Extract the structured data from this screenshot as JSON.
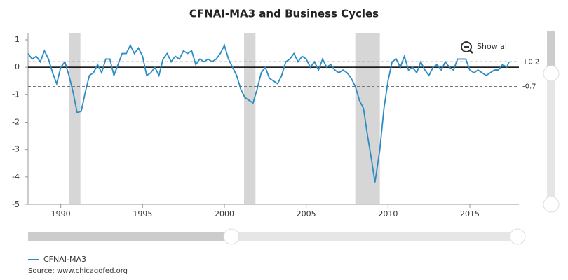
{
  "chart_data": {
    "type": "line",
    "title": "CFNAI-MA3 and Business Cycles",
    "x": [
      1988.0,
      1988.25,
      1988.5,
      1988.75,
      1989.0,
      1989.25,
      1989.5,
      1989.75,
      1990.0,
      1990.25,
      1990.5,
      1990.75,
      1991.0,
      1991.25,
      1991.5,
      1991.75,
      1992.0,
      1992.25,
      1992.5,
      1992.75,
      1993.0,
      1993.25,
      1993.5,
      1993.75,
      1994.0,
      1994.25,
      1994.5,
      1994.75,
      1995.0,
      1995.25,
      1995.5,
      1995.75,
      1996.0,
      1996.25,
      1996.5,
      1996.75,
      1997.0,
      1997.25,
      1997.5,
      1997.75,
      1998.0,
      1998.25,
      1998.5,
      1998.75,
      1999.0,
      1999.25,
      1999.5,
      1999.75,
      2000.0,
      2000.25,
      2000.5,
      2000.75,
      2001.0,
      2001.25,
      2001.5,
      2001.75,
      2002.0,
      2002.25,
      2002.5,
      2002.75,
      2003.0,
      2003.25,
      2003.5,
      2003.75,
      2004.0,
      2004.25,
      2004.5,
      2004.75,
      2005.0,
      2005.25,
      2005.5,
      2005.75,
      2006.0,
      2006.25,
      2006.5,
      2006.75,
      2007.0,
      2007.25,
      2007.5,
      2007.75,
      2008.0,
      2008.25,
      2008.5,
      2008.75,
      2009.0,
      2009.2,
      2009.5,
      2009.75,
      2010.0,
      2010.25,
      2010.5,
      2010.75,
      2011.0,
      2011.25,
      2011.5,
      2011.75,
      2012.0,
      2012.25,
      2012.5,
      2012.75,
      2013.0,
      2013.25,
      2013.5,
      2013.75,
      2014.0,
      2014.25,
      2014.5,
      2014.75,
      2015.0,
      2015.25,
      2015.5,
      2015.75,
      2016.0,
      2016.25,
      2016.5,
      2016.75,
      2017.0,
      2017.25,
      2017.4
    ],
    "series": [
      {
        "name": "CFNAI-MA3",
        "color": "#2b8cc4",
        "values": [
          0.5,
          0.3,
          0.4,
          0.2,
          0.6,
          0.3,
          -0.2,
          -0.6,
          0.0,
          0.2,
          -0.3,
          -0.9,
          -1.65,
          -1.6,
          -0.9,
          -0.3,
          -0.2,
          0.1,
          -0.2,
          0.3,
          0.3,
          -0.3,
          0.1,
          0.5,
          0.5,
          0.8,
          0.5,
          0.7,
          0.4,
          -0.3,
          -0.2,
          0.0,
          -0.3,
          0.3,
          0.5,
          0.2,
          0.4,
          0.3,
          0.6,
          0.5,
          0.6,
          0.1,
          0.3,
          0.2,
          0.3,
          0.2,
          0.3,
          0.5,
          0.8,
          0.3,
          0.0,
          -0.3,
          -0.8,
          -1.1,
          -1.2,
          -1.3,
          -0.8,
          -0.2,
          0.0,
          -0.4,
          -0.5,
          -0.6,
          -0.3,
          0.2,
          0.3,
          0.5,
          0.2,
          0.4,
          0.3,
          0.0,
          0.2,
          -0.1,
          0.3,
          0.0,
          0.1,
          -0.1,
          -0.2,
          -0.1,
          -0.2,
          -0.4,
          -0.7,
          -1.2,
          -1.5,
          -2.5,
          -3.4,
          -4.2,
          -3.0,
          -1.5,
          -0.5,
          0.2,
          0.3,
          0.0,
          0.4,
          -0.1,
          0.0,
          -0.2,
          0.2,
          -0.1,
          -0.3,
          0.0,
          0.1,
          -0.1,
          0.2,
          0.0,
          -0.1,
          0.3,
          0.3,
          0.3,
          -0.1,
          -0.2,
          -0.1,
          -0.2,
          -0.3,
          -0.2,
          -0.1,
          -0.1,
          0.1,
          0.0,
          0.2
        ]
      }
    ],
    "recessions": [
      [
        1990.5,
        1991.2
      ],
      [
        2001.2,
        2001.9
      ],
      [
        2008.0,
        2009.5
      ]
    ],
    "reference_lines": [
      {
        "value": 0.2,
        "label": "+0.2"
      },
      {
        "value": -0.7,
        "label": "-0.7"
      }
    ],
    "xlim": [
      1988,
      2018
    ],
    "xticks": [
      1990,
      1995,
      2000,
      2005,
      2010,
      2015
    ],
    "ylim": [
      -5,
      1
    ],
    "yticks": [
      -5,
      -4,
      -3,
      -2,
      -1,
      0,
      1
    ],
    "show_all": "Show all",
    "source": "Source: www.chicagofed.org"
  }
}
